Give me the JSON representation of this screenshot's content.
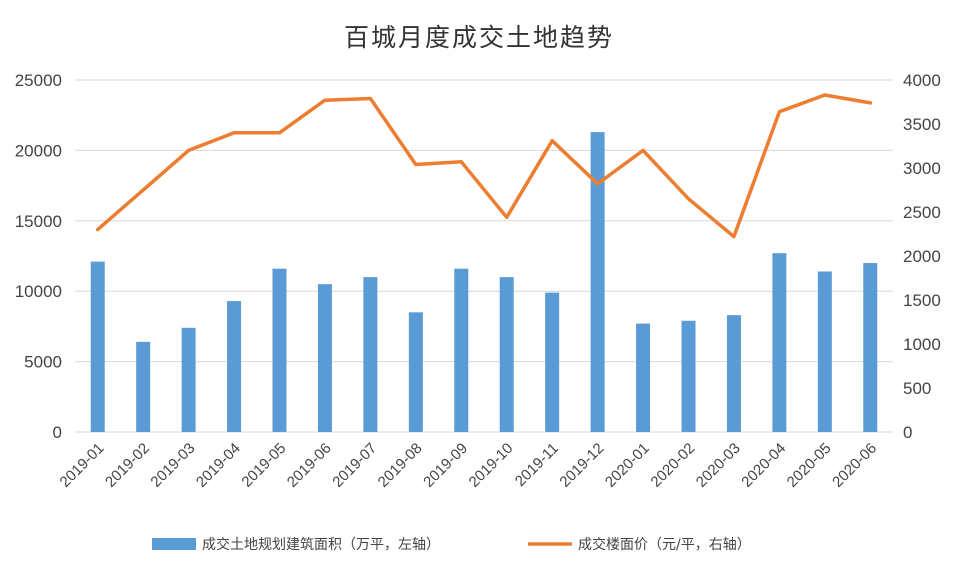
{
  "chart_data": {
    "type": "bar+line",
    "title": "百城月度成交土地趋势",
    "categories": [
      "2019-01",
      "2019-02",
      "2019-03",
      "2019-04",
      "2019-05",
      "2019-06",
      "2019-07",
      "2019-08",
      "2019-09",
      "2019-10",
      "2019-11",
      "2019-12",
      "2020-01",
      "2020-02",
      "2020-03",
      "2020-04",
      "2020-05",
      "2020-06"
    ],
    "series": [
      {
        "name": "成交土地规划建筑面积（万平，左轴）",
        "type": "bar",
        "axis": "left",
        "color": "#5B9BD5",
        "values": [
          12100,
          6400,
          7400,
          9300,
          11600,
          10500,
          11000,
          8500,
          11600,
          11000,
          9900,
          21300,
          7700,
          7900,
          8300,
          12700,
          11400,
          12000
        ]
      },
      {
        "name": "成交楼面价（元/平，右轴）",
        "type": "line",
        "axis": "right",
        "color": "#ED7D31",
        "values": [
          2300,
          2750,
          3200,
          3400,
          3400,
          3770,
          3790,
          3040,
          3070,
          2440,
          3310,
          2820,
          3200,
          2650,
          2220,
          3640,
          3830,
          3740
        ]
      }
    ],
    "y_left": {
      "min": 0,
      "max": 25000,
      "ticks": [
        "0",
        "5000",
        "10000",
        "15000",
        "20000",
        "25000"
      ]
    },
    "y_right": {
      "min": 0,
      "max": 4000,
      "ticks": [
        "0",
        "500",
        "1000",
        "1500",
        "2000",
        "2500",
        "3000",
        "3500",
        "4000"
      ]
    },
    "grid": true,
    "legend_position": "bottom"
  }
}
